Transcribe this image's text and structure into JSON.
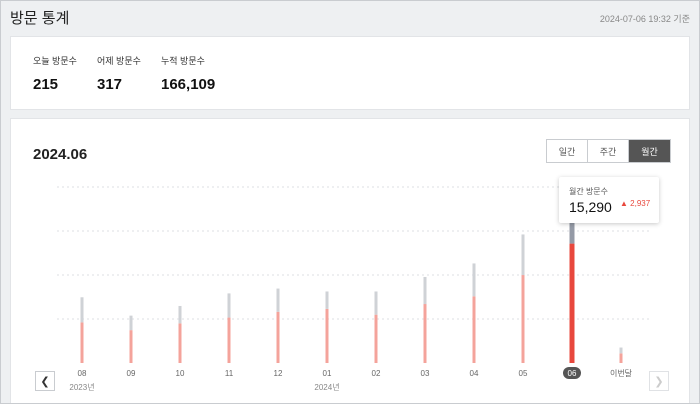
{
  "header": {
    "title": "방문 통계",
    "timestamp": "2024-07-06 19:32 기준"
  },
  "summary": {
    "today": {
      "label": "오늘 방문수",
      "value": "215"
    },
    "yesterday": {
      "label": "어제 방문수",
      "value": "317"
    },
    "total": {
      "label": "누적 방문수",
      "value": "166,109"
    }
  },
  "chart": {
    "period": "2024.06",
    "tabs": [
      {
        "label": "일간",
        "active": false
      },
      {
        "label": "주간",
        "active": false
      },
      {
        "label": "월간",
        "active": true
      }
    ],
    "tooltip": {
      "label": "월간 방문수",
      "value": "15,290",
      "delta": "2,937",
      "delta_icon": "triangle-up-icon"
    },
    "colors": {
      "primary_bar": "#f4a39b",
      "secondary_bar": "#cfd2d6",
      "selected_primary": "#e8483d",
      "selected_secondary": "#949aa6",
      "accent": "#e8483d"
    }
  },
  "chart_data": {
    "type": "bar",
    "categories": [
      "08",
      "09",
      "10",
      "11",
      "12",
      "01",
      "02",
      "03",
      "04",
      "05",
      "06",
      "이번달"
    ],
    "year_labels": [
      {
        "label": "2023년",
        "at": "08"
      },
      {
        "label": "2024년",
        "at": "01"
      }
    ],
    "selected": "06",
    "series": [
      {
        "values": [
          4200,
          3400,
          4100,
          4700,
          5300,
          5600,
          5000,
          6100,
          6900,
          9100,
          12353,
          1000
        ]
      },
      {
        "values": [
          2600,
          1500,
          1800,
          2500,
          2400,
          1800,
          2400,
          2800,
          3400,
          4200,
          2937,
          600
        ]
      }
    ],
    "ylim": [
      0,
      18000
    ],
    "grid": true,
    "stacked": true
  }
}
